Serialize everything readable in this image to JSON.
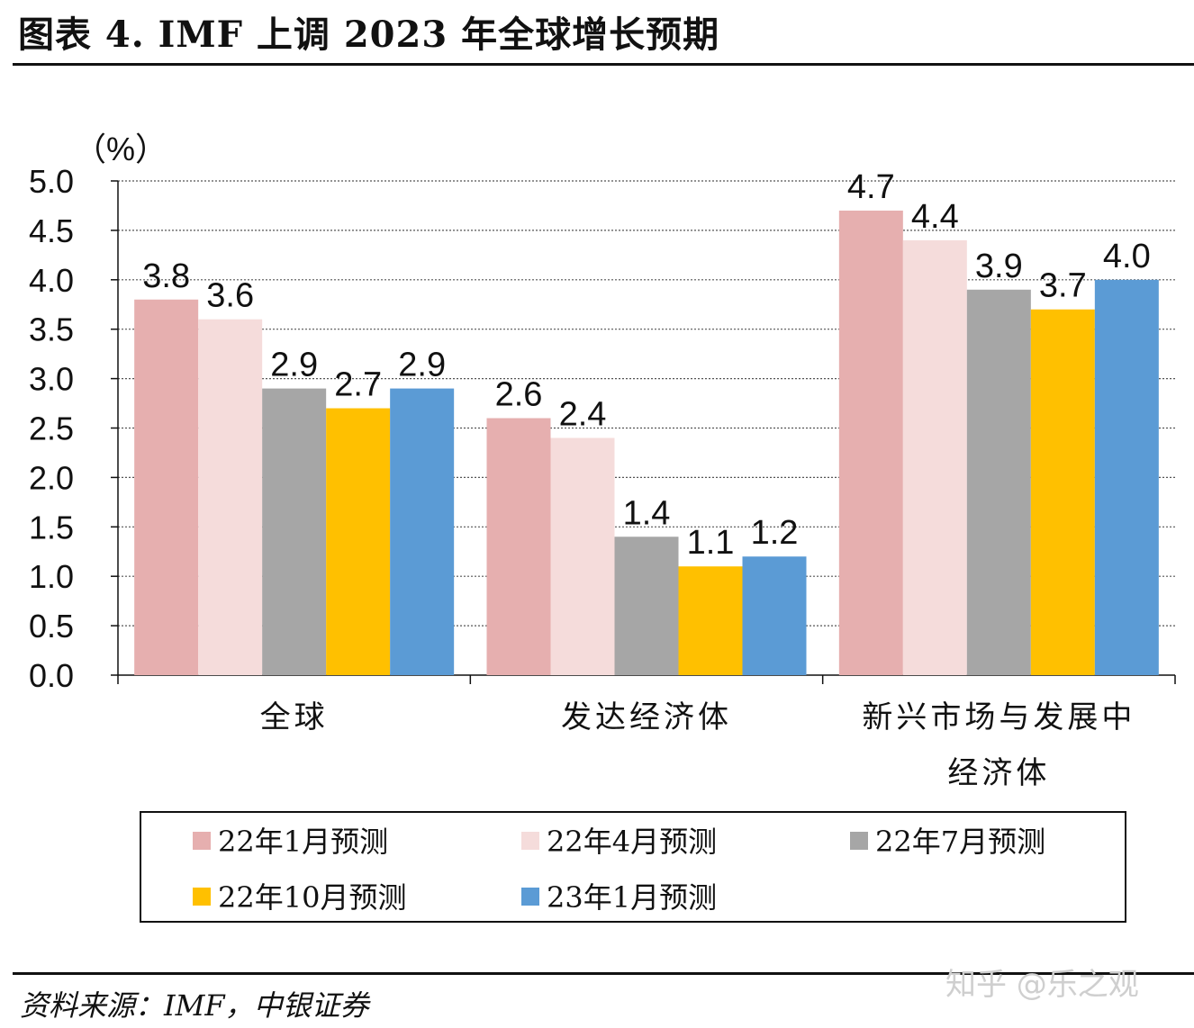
{
  "title": "图表 4. IMF 上调 2023 年全球增长预期",
  "source": "资料来源：IMF，中银证券",
  "watermark": "知乎 @乐之观",
  "chart_data": {
    "type": "bar",
    "title": "图表 4. IMF 上调 2023 年全球增长预期",
    "ylabel": "（%）",
    "xlabel": "",
    "ylim": [
      0,
      5.0
    ],
    "yticks": [
      "0.0",
      "0.5",
      "1.0",
      "1.5",
      "2.0",
      "2.5",
      "3.0",
      "3.5",
      "4.0",
      "4.5",
      "5.0"
    ],
    "grid": true,
    "legend_position": "bottom",
    "categories": [
      [
        "全球"
      ],
      [
        "发达经济体"
      ],
      [
        "新兴市场与发展中",
        "经济体"
      ]
    ],
    "series": [
      {
        "name": "22年1月预测",
        "color": "#E6AFAF",
        "values": [
          3.8,
          2.6,
          4.7
        ]
      },
      {
        "name": "22年4月预测",
        "color": "#F5DCDB",
        "values": [
          3.6,
          2.4,
          4.4
        ]
      },
      {
        "name": "22年7月预测",
        "color": "#A6A6A6",
        "values": [
          2.9,
          1.4,
          3.9
        ]
      },
      {
        "name": "22年10月预测",
        "color": "#FFC000",
        "values": [
          2.7,
          1.1,
          3.7
        ]
      },
      {
        "name": "23年1月预测",
        "color": "#5B9BD5",
        "values": [
          2.9,
          1.2,
          4.0
        ]
      }
    ]
  }
}
